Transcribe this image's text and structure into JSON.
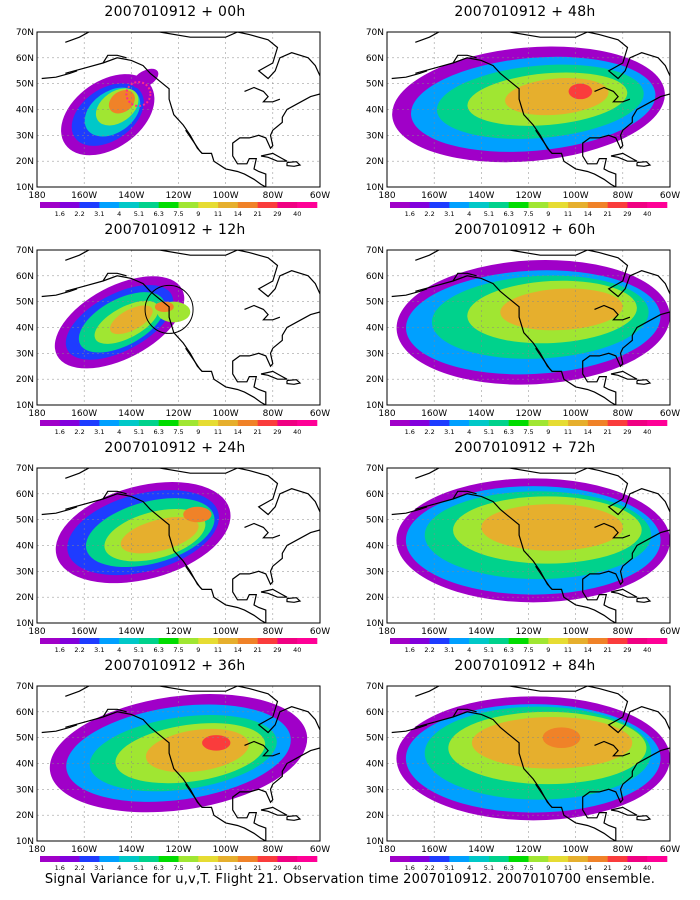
{
  "caption": "Signal Variance for u,v,T. Flight 21. Observation time 2007010912. 2007010700 ensemble.",
  "lat_labels": [
    "70N",
    "60N",
    "50N",
    "40N",
    "30N",
    "20N",
    "10N"
  ],
  "lon_labels": [
    "180",
    "160W",
    "140W",
    "120W",
    "100W",
    "80W",
    "60W"
  ],
  "colorbar": {
    "labels": [
      "1.6",
      "2.2",
      "3.1",
      "4",
      "5.1",
      "6.3",
      "7.5",
      "9",
      "11",
      "14",
      "21",
      "29",
      "40"
    ],
    "colors": [
      "#a000c8",
      "#8200dc",
      "#1e3cff",
      "#00a0ff",
      "#00c8c8",
      "#00d28c",
      "#00dc00",
      "#a0e632",
      "#e6dc32",
      "#e6af2d",
      "#f08228",
      "#fa3c3c",
      "#f00082"
    ]
  },
  "panels": [
    {
      "title": "2007010912 + 00h",
      "lead_hours": 0,
      "circle": "dotted"
    },
    {
      "title": "2007010912 + 48h",
      "lead_hours": 48
    },
    {
      "title": "2007010912 + 12h",
      "lead_hours": 12,
      "circle": "solid"
    },
    {
      "title": "2007010912 + 60h",
      "lead_hours": 60
    },
    {
      "title": "2007010912 + 24h",
      "lead_hours": 24
    },
    {
      "title": "2007010912 + 72h",
      "lead_hours": 72
    },
    {
      "title": "2007010912 + 36h",
      "lead_hours": 36
    },
    {
      "title": "2007010912 + 84h",
      "lead_hours": 84
    }
  ]
}
